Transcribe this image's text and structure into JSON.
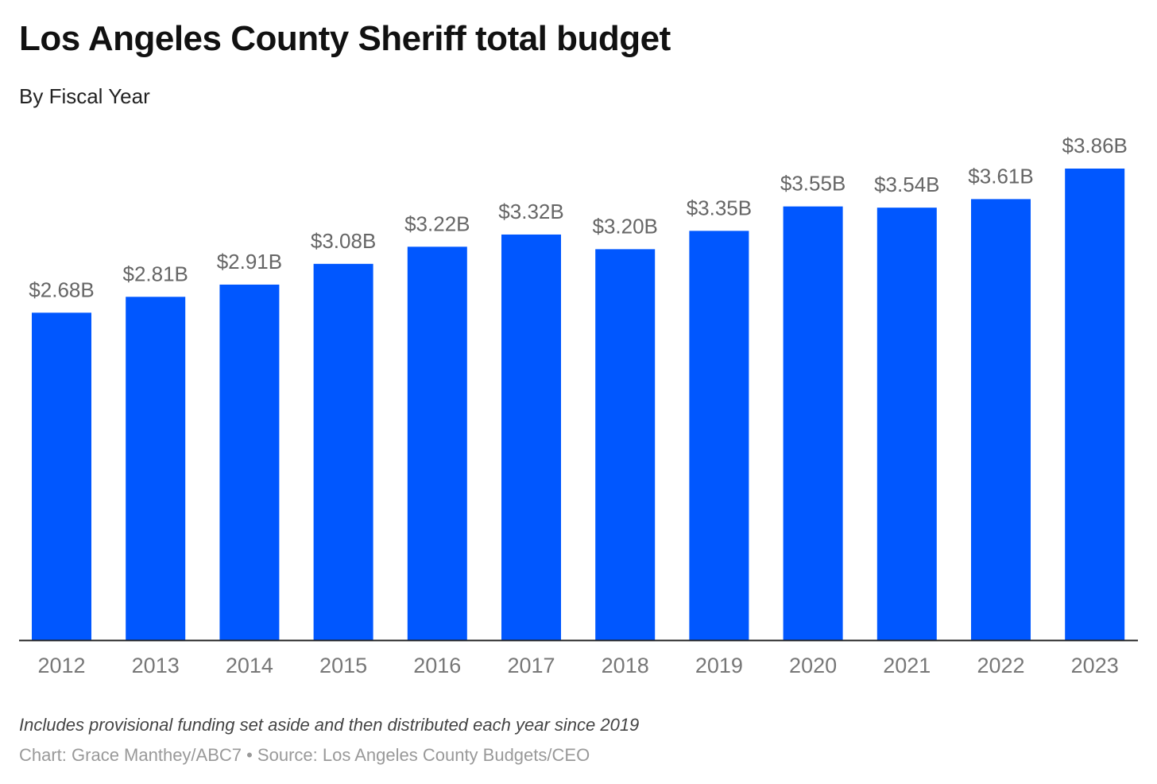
{
  "chart_data": {
    "type": "bar",
    "title": "Los Angeles County Sheriff total budget",
    "subtitle": "By Fiscal Year",
    "xlabel": "",
    "ylabel": "",
    "categories": [
      "2012",
      "2013",
      "2014",
      "2015",
      "2016",
      "2017",
      "2018",
      "2019",
      "2020",
      "2021",
      "2022",
      "2023"
    ],
    "values": [
      2.68,
      2.81,
      2.91,
      3.08,
      3.22,
      3.32,
      3.2,
      3.35,
      3.55,
      3.54,
      3.61,
      3.86
    ],
    "data_labels": [
      "$2.68B",
      "$2.81B",
      "$2.91B",
      "$3.08B",
      "$3.22B",
      "$3.32B",
      "$3.20B",
      "$3.35B",
      "$3.55B",
      "$3.54B",
      "$3.61B",
      "$3.86B"
    ],
    "unit": "billion USD",
    "ylim": [
      0,
      3.86
    ],
    "grid": false,
    "bar_color": "#0057FF"
  },
  "footer": {
    "note": "Includes provisional funding set aside and then distributed each year since 2019",
    "credit": "Chart: Grace Manthey/ABC7 • Source: Los Angeles County Budgets/CEO"
  }
}
